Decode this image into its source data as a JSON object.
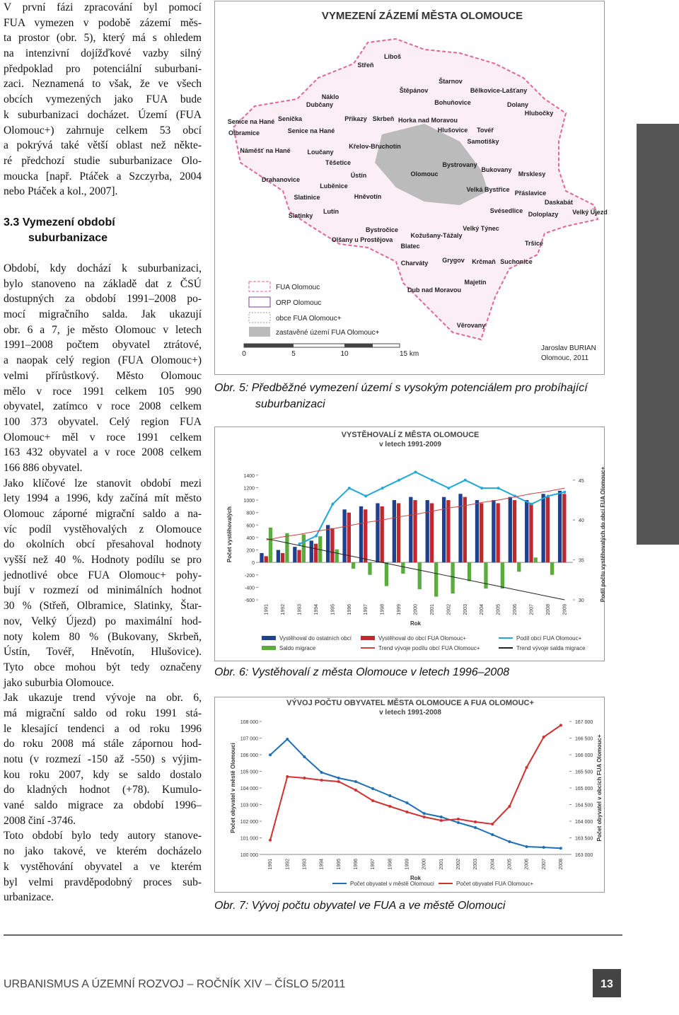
{
  "text": {
    "intro": [
      "V první fázi zpracování byl pomocí",
      "FUA vymezen v podobě zázemí měs-",
      "ta prostor (obr. 5), který má s ohledem",
      "na intenzivní dojížďkové vazby silný",
      "předpoklad pro potenciální suburbani-",
      "zaci. Neznamená to však, že ve všech",
      "obcích vymezených jako FUA bude",
      "k suburbanizaci docházet. Území (FUA",
      "Olomouc+) zahrnuje celkem 53 obcí",
      "a pokrývá také větší oblast než někte-",
      "ré předchozí studie suburbanizace Olo-",
      "moucka [např. Ptáček a Szczyrba, 2004",
      "nebo Ptáček a kol., 2007]."
    ],
    "heading": [
      "3.3 Vymezení období",
      "suburbanizace"
    ],
    "paragraphs": [
      [
        "Období, kdy dochází k suburbanizaci,",
        "bylo stanoveno na základě dat z ČSÚ",
        "dostupných za období 1991–2008 po-",
        "mocí migračního salda. Jak ukazují",
        "obr. 6 a 7, je město Olomouc v letech",
        "1991–2008 počtem obyvatel ztrátové,",
        "a naopak celý region (FUA Olomouc+)",
        "velmi přírůstkový. Město Olomouc",
        "mělo v roce 1991 celkem 105 990",
        "obyvatel, zatímco v roce 2008 celkem",
        "100 373 obyvatel. Celý region FUA",
        "Olomouc+ měl v roce 1991 celkem",
        "163 432 obyvatel a v roce 2008 celkem",
        "166 886 obyvatel."
      ],
      [
        "Jako klíčové lze stanovit období mezi",
        "lety 1994 a 1996, kdy začíná mít město",
        "Olomouc záporné migrační saldo a na-",
        "víc podíl vystěhovalých z Olomouce",
        "do okolních obcí přesahoval hodnoty",
        "vyšší než 40 %. Hodnoty podílu se pro",
        "jednotlivé obce FUA Olomouc+ pohy-",
        "bují v rozmezí od minimálních hodnot",
        "30 % (Střeň, Olbramice, Slatinky, Štar-",
        "nov, Velký Újezd) po maximální hod-",
        "noty kolem 80 % (Bukovany, Skrbeň,",
        "Ústín, Tovéř, Hněvotín, Hlušovice).",
        "Tyto obce mohou být tedy označeny",
        "jako suburbia Olomouce."
      ],
      [
        "Jak ukazuje trend vývoje na obr. 6,",
        "má migrační saldo od roku 1991 stá-",
        "le klesající tendenci a od roku 1996",
        "do roku 2008 má stále zápornou hod-",
        "notu (v rozmezí -150 až -550) s výjim-",
        "kou roku 2007, kdy se saldo dostalo",
        "do kladných hodnot (+78). Kumulo-",
        "vané saldo migrace za období 1996–",
        "2008 činí -3746."
      ],
      [
        "Toto období bylo tedy autory stanove-",
        "no jako takové, ve kterém docházelo",
        "k vystěhování obyvatel a ve kterém",
        "byl velmi pravděpodobný proces sub-",
        "urbanizace."
      ]
    ]
  },
  "map": {
    "title": "VYMEZENÍ ZÁZEMÍ MĚSTA OLOMOUCE",
    "places": [
      "Liboš",
      "Střeň",
      "Štěpánov",
      "Štarnov",
      "Bělkovice-Lašťany",
      "Dubčany",
      "Náklo",
      "Bohuňovice",
      "Dolany",
      "Hlubočky",
      "Senice na Hané",
      "Senička",
      "Příkazy",
      "Skrbeň",
      "Horka nad Moravou",
      "Hlušovice",
      "Olbramice",
      "Senice na Hané",
      "Tovéř",
      "Samotišky",
      "Náměšť na Hané",
      "Loučany",
      "Křelov-Břuchotín",
      "Těšetice",
      "Bystrovany",
      "Bukovany",
      "Drahanovice",
      "Ústín",
      "Olomouc",
      "Mrsklesy",
      "Luběnice",
      "Hněvotín",
      "Velká Bystřice",
      "Přáslavice",
      "Slatinice",
      "Daskabát",
      "Lutín",
      "Svésedlice",
      "Doloplazy",
      "Velký Újezd",
      "Slatinky",
      "Bystročice",
      "Kožušany-Tážaly",
      "Velký Týnec",
      "Olšany u Prostějova",
      "Blatec",
      "Tršice",
      "Charváty",
      "Grygov",
      "Krčmaň",
      "Suchonice",
      "Majetín",
      "Dub nad Moravou",
      "Věrovany"
    ],
    "legend": [
      "FUA Olomouc",
      "ORP Olomouc",
      "obce FUA Olomouc+",
      "zastavěné území FUA Olomouc+"
    ],
    "scale": [
      "0",
      "5",
      "10",
      "15 km"
    ],
    "author": [
      "Jaroslav BURIAN",
      "Olomouc, 2011"
    ]
  },
  "captions": [
    [
      "Obr. 5: Předběžné vymezení území s vysokým potenciálem pro probíhající",
      "suburbanizaci"
    ],
    [
      "Obr. 6: Vystěhovalí z města Olomouce v letech 1996–2008"
    ],
    [
      "Obr. 7: Vývoj počtu obyvatel ve FUA a ve městě Olomouci"
    ]
  ],
  "chart_data": [
    {
      "type": "bar",
      "title": [
        "VYSTĚHOVALÍ Z MĚSTA OLOMOUCE",
        "v letech 1991-2009"
      ],
      "x_label": "Rok",
      "y_label": "Počet vystěhovalých",
      "y2_label": "Podíl počtu vystěhovalých do obcí FUA Olomouc+",
      "categories": [
        "1991",
        "1992",
        "1993",
        "1994",
        "1995",
        "1996",
        "1997",
        "1998",
        "1999",
        "2000",
        "2001",
        "2002",
        "2003",
        "2004",
        "2005",
        "2006",
        "2007",
        "2008",
        "2009"
      ],
      "ylim": [
        -600,
        1500
      ],
      "yticks": [
        -600,
        -400,
        -200,
        0,
        200,
        400,
        600,
        800,
        1000,
        1200,
        1400
      ],
      "y2lim": [
        30,
        46.4
      ],
      "y2ticks": [
        30,
        35,
        40,
        45
      ],
      "series": [
        {
          "name": "Vystěhoval do ostatních obcí",
          "kind": "bar",
          "color": "#1f3f8f",
          "values": [
            150,
            200,
            250,
            350,
            600,
            850,
            900,
            950,
            1000,
            1050,
            1000,
            1050,
            1100,
            1000,
            1000,
            1050,
            1000,
            1100,
            1150
          ]
        },
        {
          "name": "Vystěhoval do obcí FUA Olomouc+",
          "kind": "bar",
          "color": "#c0282d",
          "values": [
            100,
            150,
            200,
            300,
            550,
            800,
            850,
            900,
            950,
            1000,
            950,
            1000,
            1050,
            950,
            950,
            1000,
            950,
            1050,
            1100
          ]
        },
        {
          "name": "Saldo migrace",
          "kind": "bar",
          "color": "#5aad3c",
          "values": [
            560,
            470,
            450,
            420,
            210,
            -100,
            -200,
            -380,
            -180,
            -430,
            -550,
            -500,
            -300,
            -420,
            -420,
            -150,
            78,
            -200,
            null
          ]
        },
        {
          "name": "Podíl obcí FUA Olomouc+",
          "kind": "line",
          "axis": "y2",
          "color": "#22a8d8",
          "values": [
            null,
            null,
            37,
            38,
            42,
            44,
            43,
            44,
            45,
            46,
            45,
            44,
            45,
            44,
            44,
            43,
            42,
            43,
            43.5
          ]
        },
        {
          "name": "Trend vývoje podílu obcí FUA Olomouc+",
          "kind": "line",
          "axis": "y2",
          "color": "#d04040",
          "values": [
            37.5,
            37.9,
            38.2,
            38.6,
            38.9,
            39.3,
            39.7,
            40,
            40.4,
            40.7,
            41.1,
            41.5,
            41.8,
            42.2,
            42.5,
            42.9,
            43.3,
            43.6,
            44
          ]
        },
        {
          "name": "Trend vývoje salda migrace",
          "kind": "line",
          "color": "#222222",
          "values": [
            380,
            326,
            271,
            217,
            162,
            108,
            53,
            -1,
            -56,
            -110,
            -164,
            -219,
            -273,
            -328,
            -382,
            -437,
            -491,
            -546,
            -600
          ]
        }
      ]
    },
    {
      "type": "line",
      "title": [
        "VÝVOJ POČTU OBYVATEL MĚSTA OLOMOUCE A FUA OLOMOUC+",
        "v letech 1991-2008"
      ],
      "x_label": "Rok",
      "y_label": "Počet obyvatel v městě Olomouci",
      "y2_label": "Počet obyvatel v obcích FUA Olomouc+",
      "categories": [
        "1991",
        "1992",
        "1993",
        "1994",
        "1995",
        "1996",
        "1997",
        "1998",
        "1999",
        "2000",
        "2001",
        "2002",
        "2003",
        "2004",
        "2005",
        "2006",
        "2007",
        "2008"
      ],
      "ylim": [
        100000,
        108000
      ],
      "yticks": [
        {
          "value": 100000,
          "label": "100 000"
        },
        {
          "value": 101000,
          "label": "101 000"
        },
        {
          "value": 102000,
          "label": "102 000"
        },
        {
          "value": 103000,
          "label": "103 000"
        },
        {
          "value": 104000,
          "label": "104 000"
        },
        {
          "value": 105000,
          "label": "105 000"
        },
        {
          "value": 106000,
          "label": "106 000"
        },
        {
          "value": 107000,
          "label": "107 000"
        },
        {
          "value": 108000,
          "label": "108 000"
        }
      ],
      "y2lim": [
        163000,
        167000
      ],
      "y2ticks": [
        {
          "value": 163000,
          "label": "163 000"
        },
        {
          "value": 163500,
          "label": "163 500"
        },
        {
          "value": 164000,
          "label": "164 000"
        },
        {
          "value": 164500,
          "label": "164 500"
        },
        {
          "value": 165000,
          "label": "165 000"
        },
        {
          "value": 165500,
          "label": "165 500"
        },
        {
          "value": 166000,
          "label": "166 000"
        },
        {
          "value": 166500,
          "label": "166 500"
        },
        {
          "value": 167000,
          "label": "167 000"
        }
      ],
      "series": [
        {
          "name": "Počet obyvatel v městě Olomouci",
          "kind": "line",
          "color": "#1f6fb5",
          "values": [
            105990,
            106936,
            105872,
            104936,
            104596,
            104383,
            103957,
            103532,
            103106,
            102468,
            102255,
            101915,
            101617,
            101191,
            100766,
            100468,
            100426,
            100373
          ]
        },
        {
          "name": "Počet obyvatel FUA Olomouc+",
          "kind": "line",
          "axis": "y2",
          "color": "#d0302f",
          "values": [
            163432,
            165340,
            165298,
            165234,
            165191,
            164936,
            164617,
            164447,
            164277,
            164128,
            164021,
            164064,
            163979,
            163915,
            164447,
            165617,
            166532,
            166886
          ]
        }
      ]
    }
  ],
  "footer": {
    "journal": "URBANISMUS A ÚZEMNÍ ROZVOJ – ROČNÍK XIV – ČÍSLO 5/2011",
    "page": "13"
  }
}
